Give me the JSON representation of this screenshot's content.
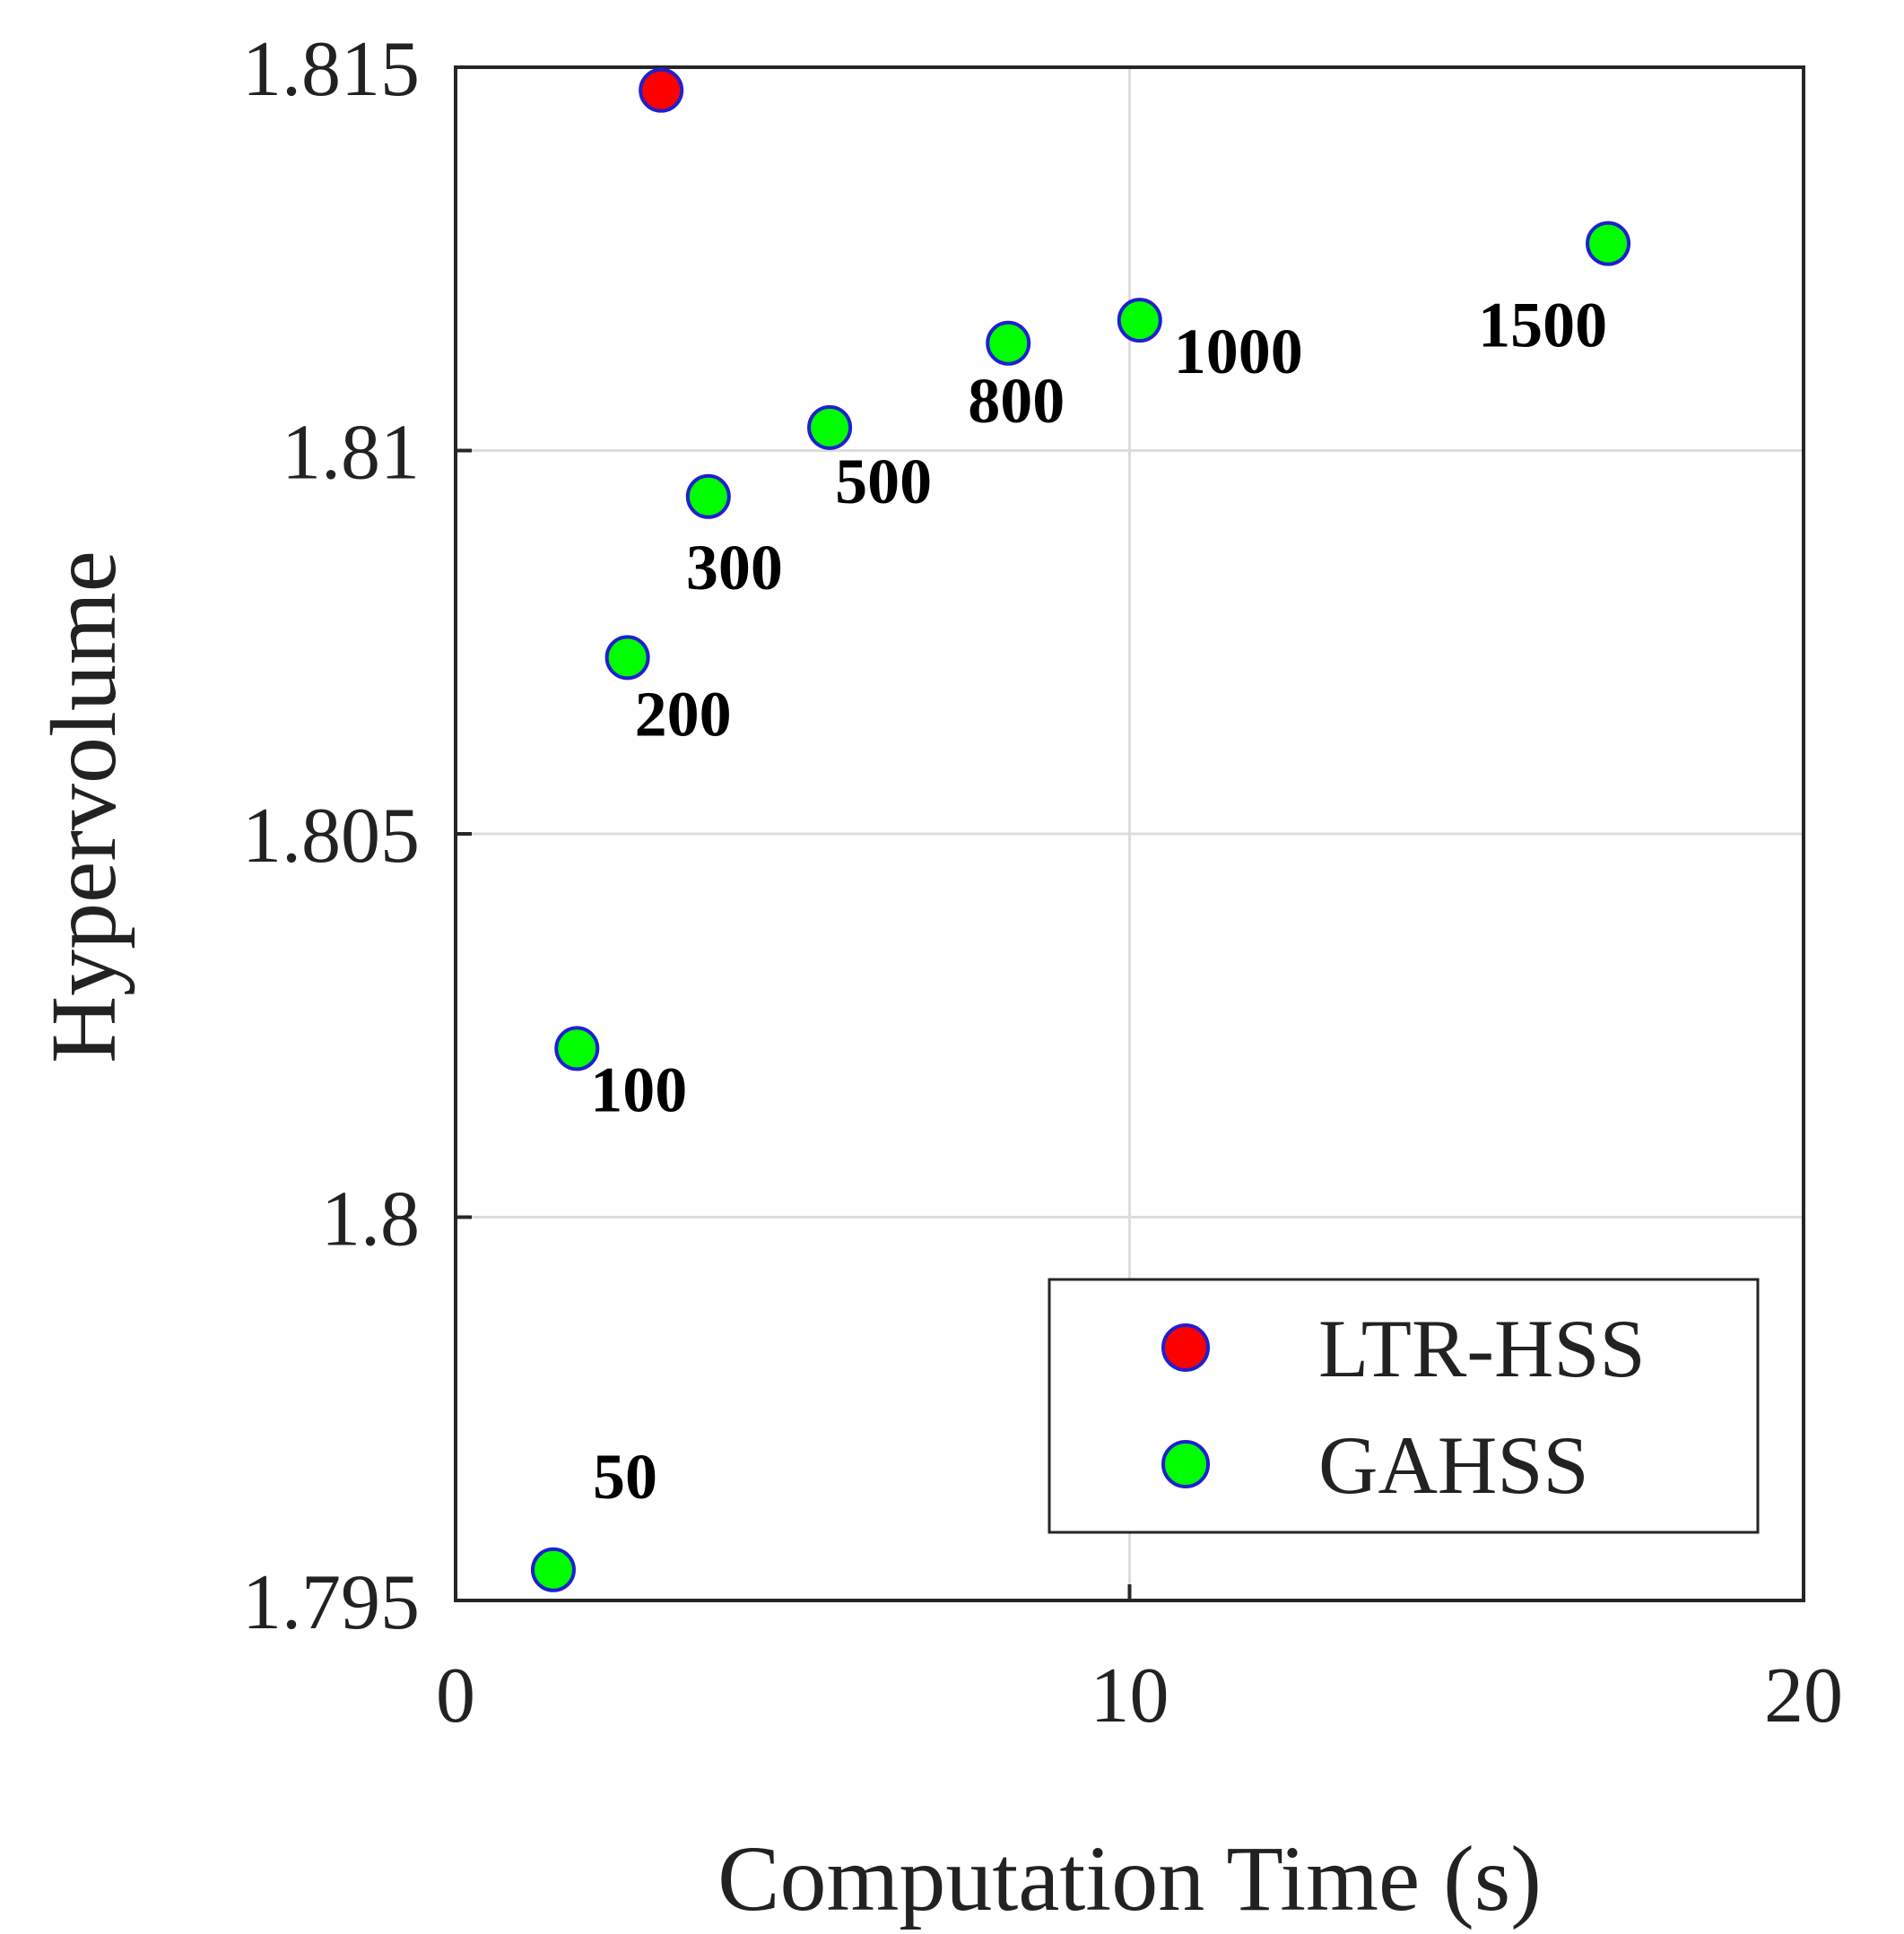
{
  "chart_data": {
    "type": "scatter",
    "xlabel": "Computation Time (s)",
    "ylabel": "Hypervolume",
    "xlim": [
      0,
      20
    ],
    "ylim": [
      1.795,
      1.815
    ],
    "xticks": [
      0,
      10,
      20
    ],
    "xtick_labels": [
      "0",
      "10",
      "20"
    ],
    "yticks": [
      1.795,
      1.8,
      1.805,
      1.81,
      1.815
    ],
    "ytick_labels": [
      "1.795",
      "1.8",
      "1.805",
      "1.81",
      "1.815"
    ],
    "grid": true,
    "legend_position": "bottom-right",
    "series": [
      {
        "name": "LTR-HSS",
        "color": "#ff0000",
        "edge_color": "#1f1fd0",
        "points": [
          {
            "x": 3.05,
            "y": 1.8147
          }
        ]
      },
      {
        "name": "GAHSS",
        "color": "#00ff00",
        "edge_color": "#1f1fd0",
        "points": [
          {
            "x": 1.45,
            "y": 1.7954,
            "label": "50"
          },
          {
            "x": 1.8,
            "y": 1.8022,
            "label": "100"
          },
          {
            "x": 2.55,
            "y": 1.8073,
            "label": "200"
          },
          {
            "x": 3.75,
            "y": 1.8094,
            "label": "300"
          },
          {
            "x": 5.55,
            "y": 1.8103,
            "label": "500"
          },
          {
            "x": 8.2,
            "y": 1.8114,
            "label": "800"
          },
          {
            "x": 10.15,
            "y": 1.8117,
            "label": "1000"
          },
          {
            "x": 17.1,
            "y": 1.8127,
            "label": "1500"
          }
        ]
      }
    ]
  }
}
